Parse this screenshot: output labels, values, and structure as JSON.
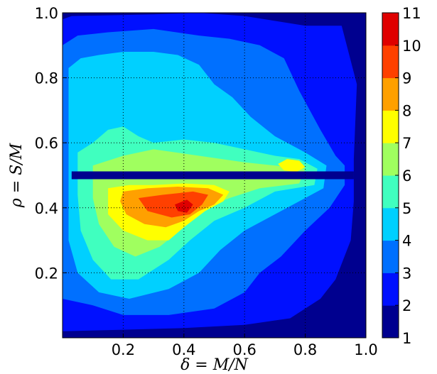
{
  "chart_data": {
    "type": "heatmap",
    "subtype": "filled-contour",
    "title": "",
    "xlabel": "δ = M/N",
    "ylabel": "ρ = S/M",
    "xlim": [
      0.0,
      1.0
    ],
    "ylim": [
      0.0,
      1.0
    ],
    "x_ticks": [
      0.2,
      0.4,
      0.6,
      0.8,
      1.0
    ],
    "x_tick_labels": [
      "0.2",
      "0.4",
      "0.6",
      "0.8",
      "1.0"
    ],
    "y_ticks": [
      0.2,
      0.4,
      0.6,
      0.8,
      1.0
    ],
    "y_tick_labels": [
      "0.2",
      "0.4",
      "0.6",
      "0.8",
      "1.0"
    ],
    "grid": true,
    "grid_style": "dotted",
    "colormap": "jet",
    "colorbar": {
      "levels": [
        1,
        2,
        3,
        4,
        5,
        6,
        7,
        8,
        9,
        10,
        11
      ],
      "labels": [
        "1",
        "2",
        "3",
        "4",
        "5",
        "6",
        "7",
        "8",
        "9",
        "10",
        "11"
      ],
      "colors": [
        "#00008f",
        "#0010ff",
        "#0070ff",
        "#00d0ff",
        "#40ffbf",
        "#a0ff5f",
        "#ffff00",
        "#ffa000",
        "#ff4000",
        "#df0000"
      ]
    },
    "contour_regions": [
      {
        "level": 2,
        "polygon": [
          [
            0.0,
            0.98
          ],
          [
            0.03,
            0.99
          ],
          [
            0.3,
            0.995
          ],
          [
            0.45,
            1.0
          ],
          [
            0.6,
            0.99
          ],
          [
            0.8,
            0.96
          ],
          [
            0.92,
            0.96
          ],
          [
            0.97,
            0.78
          ],
          [
            0.96,
            0.55
          ],
          [
            0.96,
            0.42
          ],
          [
            0.95,
            0.3
          ],
          [
            0.9,
            0.18
          ],
          [
            0.85,
            0.12
          ],
          [
            0.75,
            0.06
          ],
          [
            0.6,
            0.04
          ],
          [
            0.4,
            0.03
          ],
          [
            0.2,
            0.025
          ],
          [
            0.0,
            0.02
          ]
        ]
      },
      {
        "level": 3,
        "polygon": [
          [
            0.0,
            0.9
          ],
          [
            0.05,
            0.93
          ],
          [
            0.15,
            0.94
          ],
          [
            0.3,
            0.95
          ],
          [
            0.45,
            0.93
          ],
          [
            0.55,
            0.92
          ],
          [
            0.65,
            0.9
          ],
          [
            0.73,
            0.86
          ],
          [
            0.78,
            0.76
          ],
          [
            0.85,
            0.64
          ],
          [
            0.9,
            0.56
          ],
          [
            0.93,
            0.53
          ],
          [
            0.93,
            0.47
          ],
          [
            0.88,
            0.4
          ],
          [
            0.8,
            0.33
          ],
          [
            0.72,
            0.25
          ],
          [
            0.65,
            0.2
          ],
          [
            0.6,
            0.14
          ],
          [
            0.5,
            0.09
          ],
          [
            0.35,
            0.07
          ],
          [
            0.2,
            0.07
          ],
          [
            0.1,
            0.1
          ],
          [
            0.0,
            0.12
          ]
        ]
      },
      {
        "level": 4,
        "polygon": [
          [
            0.02,
            0.83
          ],
          [
            0.06,
            0.86
          ],
          [
            0.12,
            0.87
          ],
          [
            0.2,
            0.88
          ],
          [
            0.3,
            0.88
          ],
          [
            0.38,
            0.87
          ],
          [
            0.45,
            0.84
          ],
          [
            0.5,
            0.78
          ],
          [
            0.56,
            0.74
          ],
          [
            0.62,
            0.68
          ],
          [
            0.7,
            0.62
          ],
          [
            0.8,
            0.57
          ],
          [
            0.87,
            0.53
          ],
          [
            0.86,
            0.46
          ],
          [
            0.78,
            0.42
          ],
          [
            0.7,
            0.38
          ],
          [
            0.6,
            0.33
          ],
          [
            0.52,
            0.27
          ],
          [
            0.45,
            0.2
          ],
          [
            0.35,
            0.15
          ],
          [
            0.22,
            0.12
          ],
          [
            0.12,
            0.14
          ],
          [
            0.05,
            0.2
          ],
          [
            0.02,
            0.3
          ],
          [
            0.02,
            0.45
          ],
          [
            0.02,
            0.65
          ]
        ]
      },
      {
        "level": 5,
        "polygon": [
          [
            0.05,
            0.57
          ],
          [
            0.1,
            0.6
          ],
          [
            0.15,
            0.64
          ],
          [
            0.2,
            0.65
          ],
          [
            0.25,
            0.62
          ],
          [
            0.3,
            0.6
          ],
          [
            0.4,
            0.61
          ],
          [
            0.5,
            0.6
          ],
          [
            0.6,
            0.58
          ],
          [
            0.7,
            0.56
          ],
          [
            0.78,
            0.55
          ],
          [
            0.84,
            0.52
          ],
          [
            0.83,
            0.47
          ],
          [
            0.7,
            0.45
          ],
          [
            0.6,
            0.4
          ],
          [
            0.5,
            0.36
          ],
          [
            0.42,
            0.3
          ],
          [
            0.35,
            0.24
          ],
          [
            0.25,
            0.18
          ],
          [
            0.16,
            0.18
          ],
          [
            0.1,
            0.24
          ],
          [
            0.06,
            0.33
          ],
          [
            0.05,
            0.44
          ]
        ]
      },
      {
        "level": 6,
        "polygon": [
          [
            0.1,
            0.53
          ],
          [
            0.2,
            0.56
          ],
          [
            0.3,
            0.58
          ],
          [
            0.45,
            0.56
          ],
          [
            0.6,
            0.54
          ],
          [
            0.7,
            0.53
          ],
          [
            0.8,
            0.52
          ],
          [
            0.78,
            0.475
          ],
          [
            0.65,
            0.46
          ],
          [
            0.55,
            0.43
          ],
          [
            0.47,
            0.4
          ],
          [
            0.4,
            0.34
          ],
          [
            0.32,
            0.28
          ],
          [
            0.24,
            0.25
          ],
          [
            0.17,
            0.28
          ],
          [
            0.12,
            0.35
          ],
          [
            0.1,
            0.43
          ]
        ]
      },
      {
        "level": 7,
        "polygon": [
          [
            0.15,
            0.46
          ],
          [
            0.22,
            0.47
          ],
          [
            0.3,
            0.47
          ],
          [
            0.4,
            0.475
          ],
          [
            0.5,
            0.47
          ],
          [
            0.55,
            0.45
          ],
          [
            0.53,
            0.42
          ],
          [
            0.47,
            0.39
          ],
          [
            0.4,
            0.34
          ],
          [
            0.35,
            0.3
          ],
          [
            0.28,
            0.3
          ],
          [
            0.2,
            0.33
          ],
          [
            0.15,
            0.38
          ]
        ]
      },
      {
        "level": 7,
        "polygon": [
          [
            0.71,
            0.535
          ],
          [
            0.74,
            0.55
          ],
          [
            0.78,
            0.545
          ],
          [
            0.8,
            0.525
          ],
          [
            0.77,
            0.51
          ],
          [
            0.73,
            0.515
          ]
        ]
      },
      {
        "level": 8,
        "polygon": [
          [
            0.2,
            0.45
          ],
          [
            0.28,
            0.46
          ],
          [
            0.38,
            0.465
          ],
          [
            0.48,
            0.46
          ],
          [
            0.53,
            0.44
          ],
          [
            0.5,
            0.41
          ],
          [
            0.45,
            0.39
          ],
          [
            0.4,
            0.36
          ],
          [
            0.34,
            0.34
          ],
          [
            0.27,
            0.35
          ],
          [
            0.21,
            0.38
          ],
          [
            0.19,
            0.42
          ]
        ]
      },
      {
        "level": 9,
        "polygon": [
          [
            0.25,
            0.43
          ],
          [
            0.33,
            0.44
          ],
          [
            0.43,
            0.45
          ],
          [
            0.48,
            0.44
          ],
          [
            0.46,
            0.41
          ],
          [
            0.42,
            0.38
          ],
          [
            0.36,
            0.37
          ],
          [
            0.28,
            0.39
          ]
        ]
      },
      {
        "level": 10,
        "polygon": [
          [
            0.37,
            0.41
          ],
          [
            0.41,
            0.425
          ],
          [
            0.43,
            0.41
          ],
          [
            0.41,
            0.385
          ],
          [
            0.38,
            0.39
          ]
        ]
      }
    ],
    "gap_band": {
      "y_center": 0.5,
      "half_width": 0.012,
      "x_range": [
        0.03,
        0.96
      ],
      "level": 1
    }
  }
}
